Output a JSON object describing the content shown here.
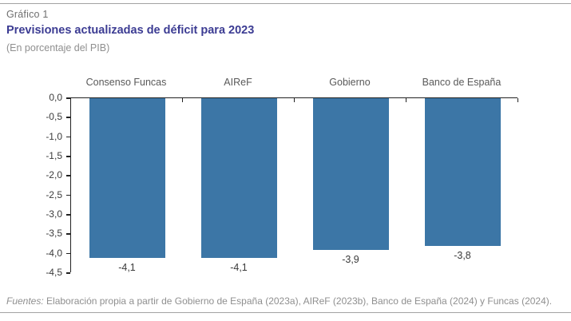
{
  "header": {
    "figure_label": "Gráfico 1",
    "title": "Previsiones actualizadas de déficit para 2023",
    "subtitle": "(En porcentaje del PIB)"
  },
  "chart_data": {
    "type": "bar",
    "orientation": "vertical-negative",
    "categories": [
      "Consenso Funcas",
      "AIReF",
      "Gobierno",
      "Banco de España"
    ],
    "values": [
      -4.1,
      -4.1,
      -3.9,
      -3.8
    ],
    "value_labels": [
      "-4,1",
      "-4,1",
      "-3,9",
      "-3,8"
    ],
    "title": "Previsiones actualizadas de déficit para 2023",
    "subtitle": "(En porcentaje del PIB)",
    "xlabel": "",
    "ylabel": "",
    "ylim": [
      -4.5,
      0
    ],
    "ytick_labels": [
      "0,0",
      "-0,5",
      "-1,0",
      "-1,5",
      "-2,0",
      "-2,5",
      "-3,0",
      "-3,5",
      "-4,0",
      "-4,5"
    ],
    "grid": false,
    "legend": null,
    "bar_color": "#3c76a6",
    "category_labels_position": "top",
    "value_labels_position": "below-bars"
  },
  "footer": {
    "sources_label": "Fuentes:",
    "sources_text": " Elaboración propia a partir de Gobierno de España (2023a), AIReF (2023b), Banco de España (2024) y Funcas (2024)."
  }
}
